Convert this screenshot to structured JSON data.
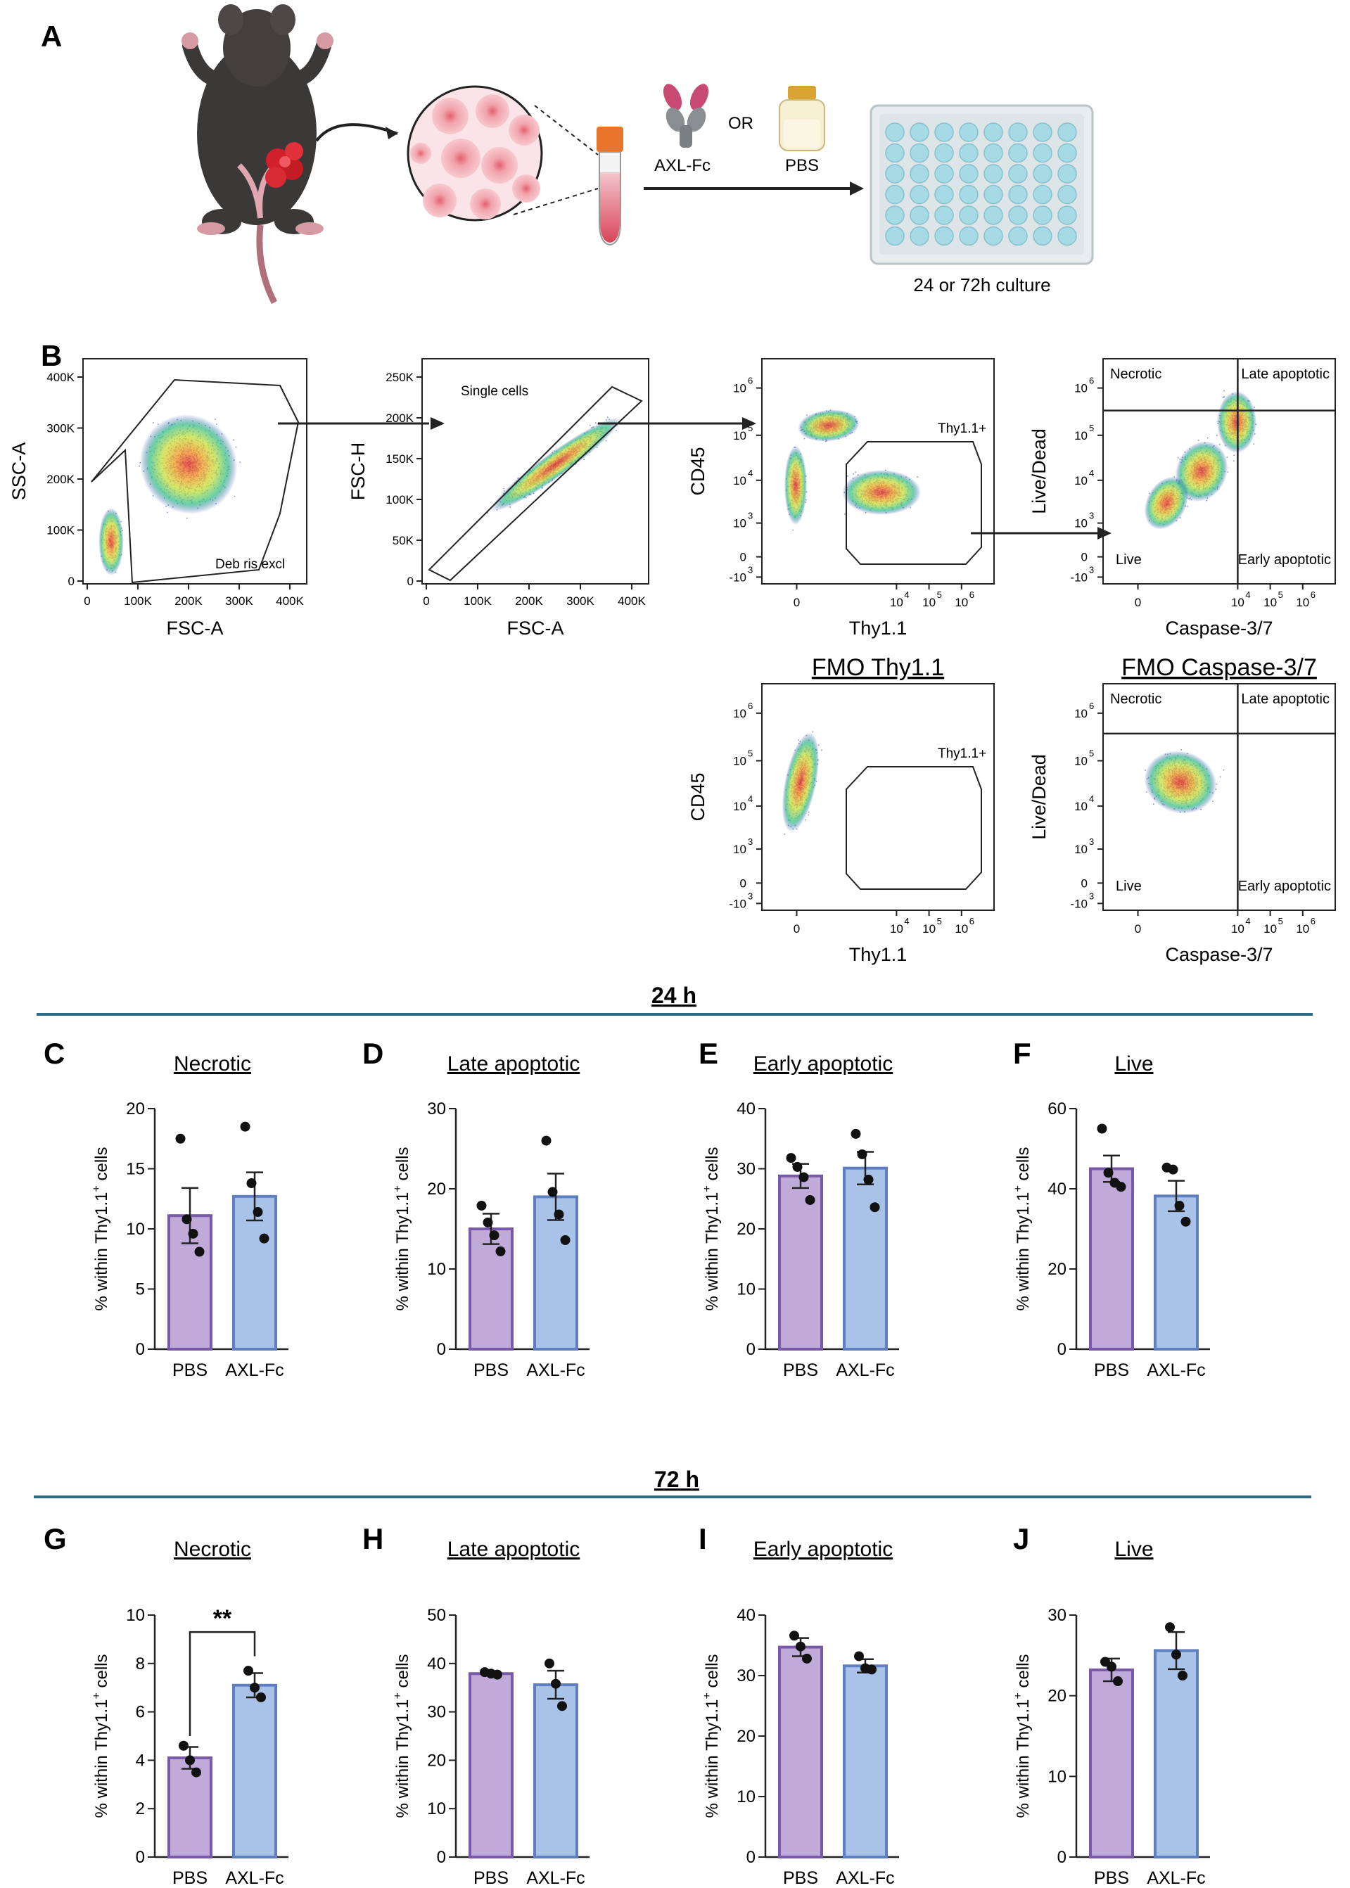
{
  "panel_a": {
    "letter": "A",
    "treatment_1": "AXL-Fc",
    "or_label": "OR",
    "treatment_2": "PBS",
    "culture_label": "24 or 72h culture"
  },
  "panel_b": {
    "letter": "B",
    "plots": [
      {
        "id": "debris",
        "xlabel": "FSC-A",
        "ylabel": "SSC-A",
        "xticks": [
          "0",
          "100K",
          "200K",
          "300K",
          "400K"
        ],
        "yticks": [
          "0",
          "100K",
          "200K",
          "300K",
          "400K"
        ],
        "gates": [
          "Deb ris excl"
        ]
      },
      {
        "id": "singlets",
        "xlabel": "FSC-A",
        "ylabel": "FSC-H",
        "xticks": [
          "0",
          "100K",
          "200K",
          "300K",
          "400K"
        ],
        "yticks": [
          "0",
          "50K",
          "100K",
          "150K",
          "200K",
          "250K"
        ],
        "gates": [
          "Single cells"
        ]
      },
      {
        "id": "thy11",
        "xlabel": "Thy1.1",
        "ylabel": "CD45",
        "xtick_labels": [
          "0",
          "10",
          "10",
          "10"
        ],
        "xtick_exps": [
          "",
          "4",
          "5",
          "6"
        ],
        "ytick_labels": [
          "-10",
          "0",
          "10",
          "10",
          "10",
          "10"
        ],
        "ytick_exps": [
          "3",
          "",
          "3",
          "4",
          "5",
          "6"
        ],
        "gates": [
          "Thy1.1+"
        ]
      },
      {
        "id": "caspase",
        "xlabel": "Caspase-3/7",
        "ylabel": "Live/Dead",
        "xtick_labels": [
          "0",
          "10",
          "10",
          "10"
        ],
        "xtick_exps": [
          "",
          "4",
          "5",
          "6"
        ],
        "ytick_labels": [
          "-10",
          "0",
          "10",
          "10",
          "10",
          "10"
        ],
        "ytick_exps": [
          "3",
          "",
          "3",
          "4",
          "5",
          "6"
        ],
        "quadrants": [
          "Necrotic",
          "Late apoptotic",
          "Live",
          "Early apoptotic"
        ]
      },
      {
        "id": "fmo_thy11",
        "title": "FMO Thy1.1",
        "xlabel": "Thy1.1",
        "ylabel": "CD45",
        "xtick_labels": [
          "0",
          "10",
          "10",
          "10"
        ],
        "xtick_exps": [
          "",
          "4",
          "5",
          "6"
        ],
        "ytick_labels": [
          "-10",
          "0",
          "10",
          "10",
          "10",
          "10"
        ],
        "ytick_exps": [
          "3",
          "",
          "3",
          "4",
          "5",
          "6"
        ],
        "gates": [
          "Thy1.1+"
        ]
      },
      {
        "id": "fmo_caspase",
        "title": "FMO Caspase-3/7",
        "xlabel": "Caspase-3/7",
        "ylabel": "Live/Dead",
        "xtick_labels": [
          "0",
          "10",
          "10",
          "10"
        ],
        "xtick_exps": [
          "",
          "4",
          "5",
          "6"
        ],
        "ytick_labels": [
          "-10",
          "0",
          "10",
          "10",
          "10",
          "10"
        ],
        "ytick_exps": [
          "3",
          "",
          "3",
          "4",
          "5",
          "6"
        ],
        "quadrants": [
          "Necrotic",
          "Late apoptotic",
          "Live",
          "Early apoptotic"
        ]
      }
    ]
  },
  "sections": [
    {
      "label": "24 h"
    },
    {
      "label": "72 h"
    }
  ],
  "colors": {
    "divider": "#2e6b8a",
    "pbs_fill": "#bfaad9",
    "pbs_edge": "#7a5aa8",
    "axl_fill": "#a9c2e8",
    "axl_edge": "#5f7fc0"
  },
  "chart_data": [
    {
      "type": "bar",
      "letter": "C",
      "title": "Necrotic",
      "ylabel_main": "% within Thy1.1",
      "ylabel_sup": "+",
      "ylabel_end": " cells",
      "categories": [
        "PBS",
        "AXL-Fc"
      ],
      "ylim": [
        0,
        20
      ],
      "yticks": [
        0,
        5,
        10,
        15,
        20
      ],
      "values": [
        11.1,
        12.7
      ],
      "sem": [
        2.3,
        2.0
      ],
      "points": [
        [
          17.5,
          10.8,
          9.6,
          8.1
        ],
        [
          18.5,
          13.8,
          11.4,
          9.2
        ]
      ],
      "annotation": ""
    },
    {
      "type": "bar",
      "letter": "D",
      "title": "Late apoptotic",
      "ylabel_main": "% within Thy1.1",
      "ylabel_sup": "+",
      "ylabel_end": " cells",
      "categories": [
        "PBS",
        "AXL-Fc"
      ],
      "ylim": [
        0,
        30
      ],
      "yticks": [
        0,
        10,
        20,
        30
      ],
      "values": [
        15.0,
        19.0
      ],
      "sem": [
        1.9,
        2.9
      ],
      "points": [
        [
          17.9,
          15.8,
          14.2,
          12.2
        ],
        [
          26.0,
          19.6,
          16.8,
          13.6
        ]
      ],
      "annotation": ""
    },
    {
      "type": "bar",
      "letter": "E",
      "title": "Early apoptotic",
      "ylabel_main": "% within Thy1.1",
      "ylabel_sup": "+",
      "ylabel_end": " cells",
      "categories": [
        "PBS",
        "AXL-Fc"
      ],
      "ylim": [
        0,
        40
      ],
      "yticks": [
        0,
        10,
        20,
        30,
        40
      ],
      "values": [
        28.8,
        30.1
      ],
      "sem": [
        2.0,
        2.7
      ],
      "points": [
        [
          31.8,
          30.3,
          28.6,
          24.8
        ],
        [
          35.8,
          32.4,
          28.2,
          23.6
        ]
      ],
      "annotation": ""
    },
    {
      "type": "bar",
      "letter": "F",
      "title": "Live",
      "ylabel_main": "% within Thy1.1",
      "ylabel_sup": "+",
      "ylabel_end": " cells",
      "categories": [
        "PBS",
        "AXL-Fc"
      ],
      "ylim": [
        0,
        60
      ],
      "yticks": [
        0,
        20,
        40,
        60
      ],
      "values": [
        45.0,
        38.2
      ],
      "sem": [
        3.3,
        3.8
      ],
      "points": [
        [
          55.0,
          44.0,
          41.5,
          40.5
        ],
        [
          45.3,
          44.8,
          35.8,
          31.8
        ]
      ],
      "annotation": ""
    },
    {
      "type": "bar",
      "letter": "G",
      "title": "Necrotic",
      "ylabel_main": "% within Thy1.1",
      "ylabel_sup": "+",
      "ylabel_end": " cells",
      "categories": [
        "PBS",
        "AXL-Fc"
      ],
      "ylim": [
        0,
        10
      ],
      "yticks": [
        0,
        2,
        4,
        6,
        8,
        10
      ],
      "values": [
        4.1,
        7.1
      ],
      "sem": [
        0.45,
        0.5
      ],
      "points": [
        [
          4.6,
          4.0,
          3.5
        ],
        [
          7.7,
          7.0,
          6.6
        ]
      ],
      "annotation": "**"
    },
    {
      "type": "bar",
      "letter": "H",
      "title": "Late apoptotic",
      "ylabel_main": "% within Thy1.1",
      "ylabel_sup": "+",
      "ylabel_end": " cells",
      "categories": [
        "PBS",
        "AXL-Fc"
      ],
      "ylim": [
        0,
        50
      ],
      "yticks": [
        0,
        10,
        20,
        30,
        40,
        50
      ],
      "values": [
        37.9,
        35.6
      ],
      "sem": [
        0.3,
        2.9
      ],
      "points": [
        [
          38.2,
          37.9,
          37.7
        ],
        [
          40.0,
          35.8,
          31.2
        ]
      ],
      "annotation": ""
    },
    {
      "type": "bar",
      "letter": "I",
      "title": "Early apoptotic",
      "ylabel_main": "% within Thy1.1",
      "ylabel_sup": "+",
      "ylabel_end": " cells",
      "categories": [
        "PBS",
        "AXL-Fc"
      ],
      "ylim": [
        0,
        40
      ],
      "yticks": [
        0,
        10,
        20,
        30,
        40
      ],
      "values": [
        34.7,
        31.6
      ],
      "sem": [
        1.5,
        1.1
      ],
      "points": [
        [
          36.6,
          34.8,
          32.8
        ],
        [
          33.2,
          31.2,
          31.0
        ]
      ],
      "annotation": ""
    },
    {
      "type": "bar",
      "letter": "J",
      "title": "Live",
      "ylabel_main": "% within Thy1.1",
      "ylabel_sup": "+",
      "ylabel_end": " cells",
      "categories": [
        "PBS",
        "AXL-Fc"
      ],
      "ylim": [
        0,
        30
      ],
      "yticks": [
        0,
        10,
        20,
        30
      ],
      "values": [
        23.2,
        25.6
      ],
      "sem": [
        1.4,
        2.3
      ],
      "points": [
        [
          24.2,
          23.6,
          21.8
        ],
        [
          28.5,
          25.1,
          22.5
        ]
      ],
      "annotation": ""
    }
  ]
}
